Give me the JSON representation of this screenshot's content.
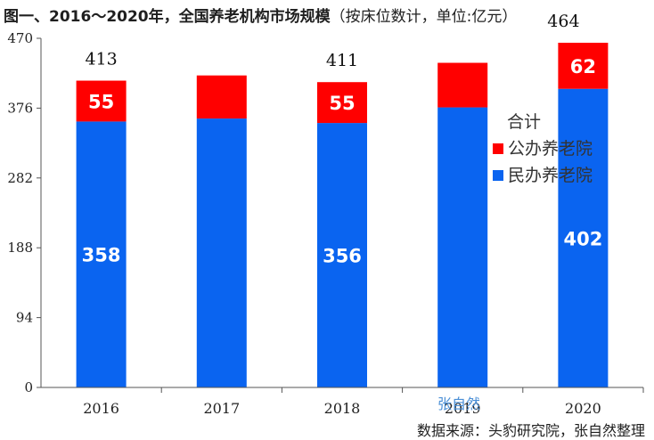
{
  "title": {
    "main": "图一、2016～2020年，全国养老机构市场规模",
    "sub": "（按床位数计，单位:亿元）"
  },
  "source": "数据来源：头豹研究院，张自然整理",
  "watermark": "张自然",
  "colors": {
    "private": "#0a64f0",
    "public": "#ff0000",
    "axis": "#555555"
  },
  "chart_data": {
    "type": "bar",
    "stacked": true,
    "categories": [
      "2016",
      "2017",
      "2018",
      "2019",
      "2020"
    ],
    "series": [
      {
        "name": "民办养老院",
        "values": [
          358,
          362,
          356,
          377,
          402
        ],
        "labels": [
          "358",
          "",
          "356",
          "",
          "402"
        ]
      },
      {
        "name": "公办养老院",
        "values": [
          55,
          58,
          55,
          60,
          62
        ],
        "labels": [
          "55",
          "",
          "55",
          "",
          "62"
        ]
      }
    ],
    "totals": [
      "413",
      "",
      "411",
      "",
      "464"
    ],
    "legend_title": "合计",
    "yticks": [
      0,
      94,
      188,
      282,
      376,
      470
    ],
    "ylim": [
      0,
      470
    ],
    "grid": false,
    "legend_position": "right"
  }
}
